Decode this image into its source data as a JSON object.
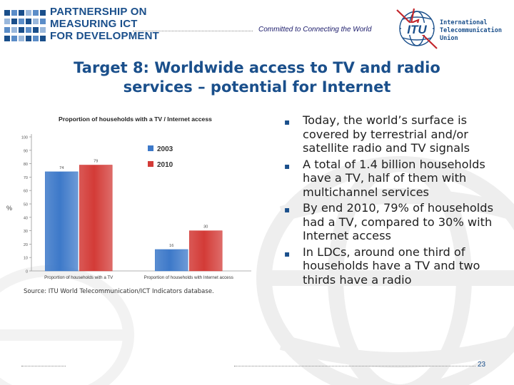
{
  "header": {
    "org_line1": "PARTNERSHIP ON",
    "org_line2": "MEASURING ICT",
    "org_line3": "FOR DEVELOPMENT",
    "tagline": "Committed to Connecting the World",
    "itu_line1": "International",
    "itu_line2": "Telecommunication",
    "itu_line3": "Union",
    "itu_mark": "ITU",
    "brand_color": "#1a4f8b"
  },
  "title": {
    "line1": "Target 8: Worldwide access to TV and radio",
    "line2": "services – potential for Internet"
  },
  "chart_data": {
    "type": "bar",
    "title": "Proportion of households with a TV / Internet access",
    "ylabel": "%",
    "xlabel": "",
    "ylim": [
      0,
      100
    ],
    "yticks": [
      0,
      10,
      20,
      30,
      40,
      50,
      60,
      70,
      80,
      90,
      100
    ],
    "categories": [
      "Proportion of households with a TV",
      "Proportion of households with Internet access"
    ],
    "series": [
      {
        "name": "2003",
        "values": [
          74,
          16
        ],
        "labels": [
          "74",
          "16"
        ],
        "color": "#3d79c9"
      },
      {
        "name": "2010",
        "values": [
          79,
          30
        ],
        "labels": [
          "79",
          "30"
        ],
        "color": "#d33b37"
      }
    ],
    "legend_position": "center-right",
    "grid": false
  },
  "source": "Source: ITU World Telecommunication/ICT Indicators database.",
  "bullets": [
    {
      "text": "Today, the world’s surface is covered by terrestrial and/or satellite radio and TV signals"
    },
    {
      "text": "A total of 1.4 billion households have a TV, half of them with multichannel services"
    },
    {
      "text": "By end 2010, 79% of households had a TV, compared to 30% with Internet access"
    },
    {
      "text": "In LDCs, around one third of households have a TV and two thirds have a radio"
    }
  ],
  "bullet_symbol": "▪",
  "page_number": "23"
}
